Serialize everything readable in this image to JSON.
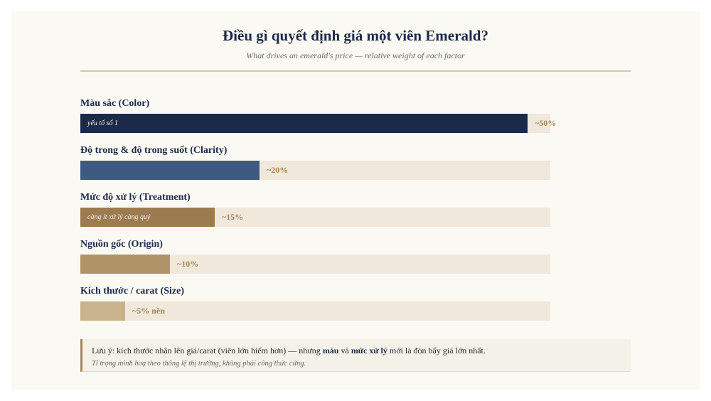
{
  "chart_data": {
    "type": "bar",
    "orientation": "horizontal",
    "title": "Điều gì quyết định giá một viên Emerald?",
    "subtitle": "What drives an emerald's price — relative weight of each factor",
    "categories": [
      "Màu sắc (Color)",
      "Độ trong & độ trong suốt (Clarity)",
      "Mức độ xử lý (Treatment)",
      "Nguồn gốc (Origin)",
      "Kích thước / carat (Size)"
    ],
    "values": [
      50,
      20,
      15,
      10,
      5
    ],
    "value_labels": [
      "~50%",
      "~20%",
      "~15%",
      "~10%",
      "~5% nền"
    ],
    "inner_notes": [
      "yếu tố số 1",
      "",
      "càng ít xử lý càng quý",
      "",
      ""
    ],
    "colors": [
      "#1c2a4a",
      "#3d5a80",
      "#9c7b50",
      "#b09468",
      "#c9b38c"
    ],
    "xlim": [
      0,
      50
    ],
    "grid": false
  },
  "note": {
    "line1_a": "Lưu ý: kích thước nhân lên giá/carat (viên lớn hiếm hơn) — nhưng ",
    "bold_1": "màu",
    "line1_b": " và ",
    "bold_2": "mức xử lý",
    "line1_c": " mới là đòn bẩy giá lớn nhất.",
    "line2": "Tỉ trọng minh hoạ theo thông lệ thị trường, không phải công thức cứng."
  }
}
